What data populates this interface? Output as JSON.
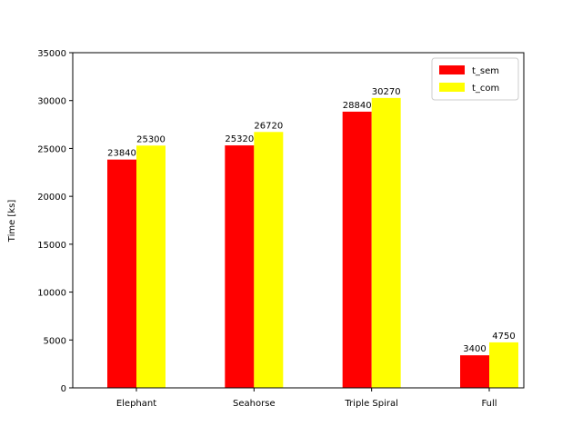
{
  "chart_data": {
    "type": "bar",
    "categories": [
      "Elephant",
      "Seahorse",
      "Triple Spiral",
      "Full"
    ],
    "series": [
      {
        "name": "t_sem",
        "color": "#ff0000",
        "values": [
          23840,
          25320,
          28840,
          3400
        ]
      },
      {
        "name": "t_com",
        "color": "#ffff00",
        "values": [
          25300,
          26720,
          30270,
          4750
        ]
      }
    ],
    "xlabel": "",
    "ylabel": "Time [ks]",
    "ylim": [
      0,
      35000
    ],
    "yticks": [
      0,
      5000,
      10000,
      15000,
      20000,
      25000,
      30000,
      35000
    ],
    "grid": false,
    "legend_position": "top-right"
  }
}
